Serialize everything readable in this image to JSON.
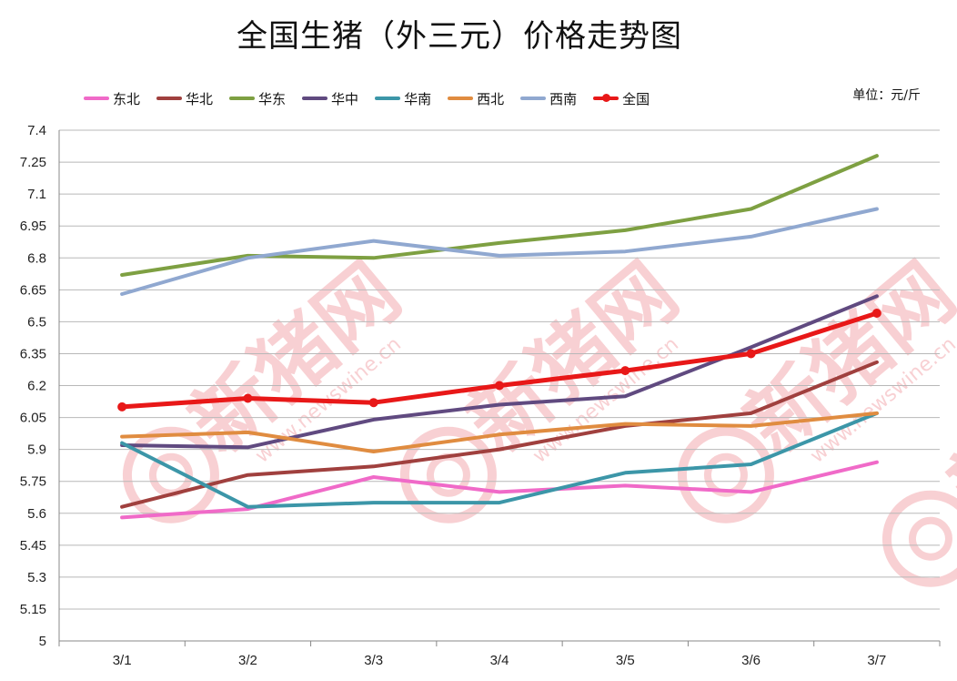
{
  "chart_data": {
    "type": "line",
    "title": "全国生猪（外三元）价格走势图",
    "unit": "单位：元/斤",
    "categories": [
      "3/1",
      "3/2",
      "3/3",
      "3/4",
      "3/5",
      "3/6",
      "3/7"
    ],
    "ylim": [
      5,
      7.4
    ],
    "yticks": [
      "5",
      "5.15",
      "5.3",
      "5.45",
      "5.6",
      "5.75",
      "5.9",
      "6.05",
      "6.2",
      "6.35",
      "6.5",
      "6.65",
      "6.8",
      "6.95",
      "7.1",
      "7.25",
      "7.4"
    ],
    "grid": true,
    "legend_position": "top-left",
    "watermark": "新猪网 www.newswine.cn",
    "series": [
      {
        "name": "东北",
        "color": "#f06ac8",
        "width": 4,
        "markers": false,
        "values": [
          5.58,
          5.62,
          5.77,
          5.7,
          5.73,
          5.7,
          5.84
        ]
      },
      {
        "name": "华北",
        "color": "#a0403e",
        "width": 4,
        "markers": false,
        "values": [
          5.63,
          5.78,
          5.82,
          5.9,
          6.01,
          6.07,
          6.31
        ]
      },
      {
        "name": "华东",
        "color": "#7ea042",
        "width": 4,
        "markers": false,
        "values": [
          6.72,
          6.81,
          6.8,
          6.87,
          6.93,
          7.03,
          7.28
        ]
      },
      {
        "name": "华中",
        "color": "#604a80",
        "width": 4,
        "markers": false,
        "values": [
          5.92,
          5.91,
          6.04,
          6.11,
          6.15,
          6.38,
          6.62
        ]
      },
      {
        "name": "华南",
        "color": "#3c96a8",
        "width": 4,
        "markers": false,
        "values": [
          5.93,
          5.63,
          5.65,
          5.65,
          5.79,
          5.83,
          6.07
        ]
      },
      {
        "name": "西北",
        "color": "#e08c40",
        "width": 4,
        "markers": false,
        "values": [
          5.96,
          5.98,
          5.89,
          5.97,
          6.02,
          6.01,
          6.07
        ]
      },
      {
        "name": "西南",
        "color": "#90a8d0",
        "width": 4,
        "markers": false,
        "values": [
          6.63,
          6.8,
          6.88,
          6.81,
          6.83,
          6.9,
          7.03
        ]
      },
      {
        "name": "全国",
        "color": "#e81818",
        "width": 5,
        "markers": true,
        "values": [
          6.1,
          6.14,
          6.12,
          6.2,
          6.27,
          6.35,
          6.54
        ]
      }
    ]
  }
}
